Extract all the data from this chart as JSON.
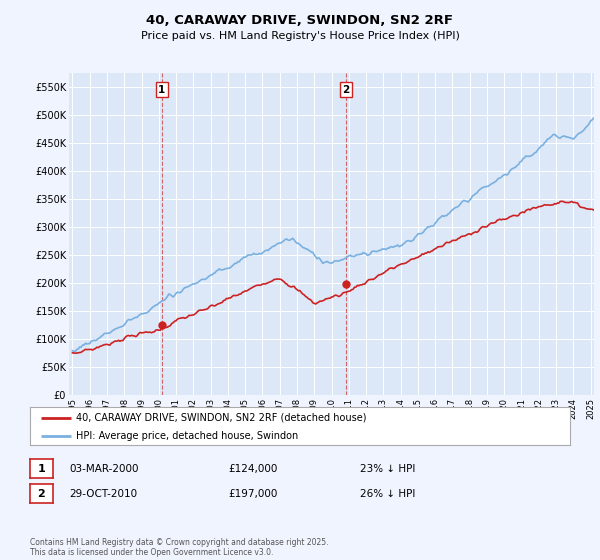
{
  "title": "40, CARAWAY DRIVE, SWINDON, SN2 2RF",
  "subtitle": "Price paid vs. HM Land Registry's House Price Index (HPI)",
  "background_color": "#f0f4ff",
  "plot_bg_color": "#dce8f8",
  "grid_color": "#ffffff",
  "hpi_color": "#7ab0e0",
  "price_color": "#cc2222",
  "dashed_color": "#cc4444",
  "legend_label_price": "40, CARAWAY DRIVE, SWINDON, SN2 2RF (detached house)",
  "legend_label_hpi": "HPI: Average price, detached house, Swindon",
  "table_row1": [
    "1",
    "03-MAR-2000",
    "£124,000",
    "23% ↓ HPI"
  ],
  "table_row2": [
    "2",
    "29-OCT-2010",
    "£197,000",
    "26% ↓ HPI"
  ],
  "footnote": "Contains HM Land Registry data © Crown copyright and database right 2025.\nThis data is licensed under the Open Government Licence v3.0.",
  "ylim": [
    0,
    575000
  ],
  "yticks": [
    0,
    50000,
    100000,
    150000,
    200000,
    250000,
    300000,
    350000,
    400000,
    450000,
    500000,
    550000
  ],
  "ytick_labels": [
    "£0",
    "£50K",
    "£100K",
    "£150K",
    "£200K",
    "£250K",
    "£300K",
    "£350K",
    "£400K",
    "£450K",
    "£500K",
    "£550K"
  ],
  "x_start_year": 1995,
  "x_end_year": 2025,
  "marker1_year": 2000.17,
  "marker2_year": 2010.83,
  "marker1_price": 124000,
  "marker2_price": 197000
}
